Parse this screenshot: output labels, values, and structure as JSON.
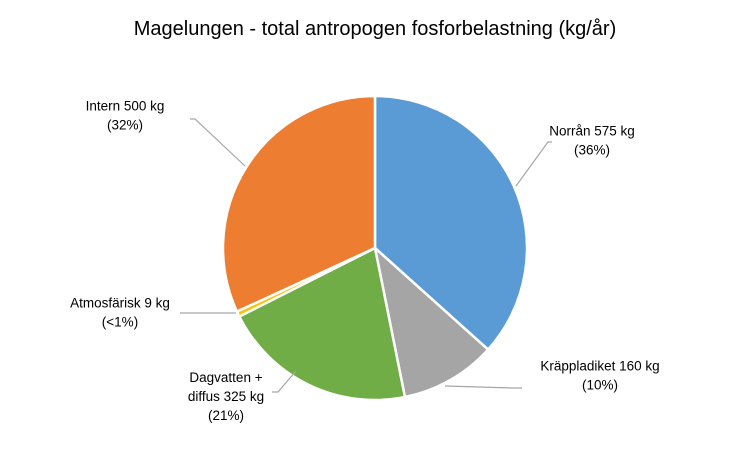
{
  "chart_data": {
    "type": "pie",
    "title": "Magelungen - total antropogen fosforbelastning (kg/år)",
    "slices": [
      {
        "name": "Norrån",
        "value": 575,
        "label_lines": [
          "Norrån 575 kg",
          "(36%)"
        ],
        "color": "#5B9BD5"
      },
      {
        "name": "Kräppladiket",
        "value": 160,
        "label_lines": [
          "Kräppladiket 160 kg",
          "(10%)"
        ],
        "color": "#A5A5A5"
      },
      {
        "name": "Dagvatten + diffus",
        "value": 325,
        "label_lines": [
          "Dagvatten +",
          "diffus 325 kg",
          "(21%)"
        ],
        "color": "#70AD47"
      },
      {
        "name": "Atmosfärisk",
        "value": 9,
        "label_lines": [
          "Atmosfärisk 9 kg",
          "(<1%)"
        ],
        "color": "#FFC000"
      },
      {
        "name": "Intern",
        "value": 500,
        "label_lines": [
          "Intern 500 kg",
          "(32%)"
        ],
        "color": "#ED7D31"
      }
    ],
    "start_angle": "12 o'clock",
    "direction": "clockwise",
    "legend": "none",
    "leader_line_color": "#A6A6A6"
  }
}
